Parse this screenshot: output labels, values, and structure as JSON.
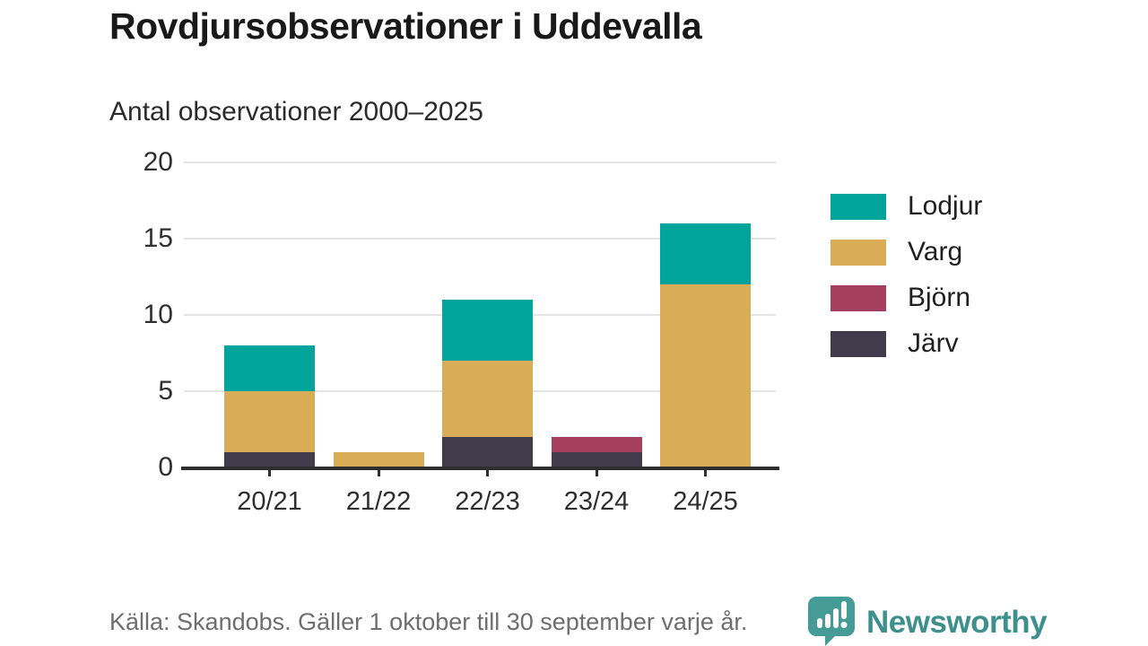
{
  "title": "Rovdjursobservationer i Uddevalla",
  "subtitle": "Antal observationer 2000–2025",
  "chart_data": {
    "type": "bar",
    "stacked": true,
    "title": "Rovdjursobservationer i Uddevalla",
    "subtitle": "Antal observationer 2000–2025",
    "categories": [
      "20/21",
      "21/22",
      "22/23",
      "23/24",
      "24/25"
    ],
    "series": [
      {
        "name": "Lodjur",
        "color": "#00a49a",
        "values": [
          3,
          0,
          4,
          0,
          4
        ]
      },
      {
        "name": "Varg",
        "color": "#d9ac58",
        "values": [
          4,
          1,
          5,
          0,
          12
        ]
      },
      {
        "name": "Björn",
        "color": "#a63f5f",
        "values": [
          0,
          0,
          0,
          1,
          0
        ]
      },
      {
        "name": "Järv",
        "color": "#413c4b",
        "values": [
          1,
          0,
          2,
          1,
          0
        ]
      }
    ],
    "stack_order_bottom_to_top": [
      "Järv",
      "Björn",
      "Varg",
      "Lodjur"
    ],
    "totals": [
      8,
      1,
      11,
      2,
      16
    ],
    "xlabel": "",
    "ylabel": "",
    "ylim": [
      0,
      20
    ],
    "yticks": [
      0,
      5,
      10,
      15,
      20
    ],
    "grid": true,
    "legend_position": "right",
    "legend": [
      "Lodjur",
      "Varg",
      "Björn",
      "Järv"
    ]
  },
  "footer": {
    "source": "Källa: Skandobs. Gäller 1 oktober till 30 september varje år."
  },
  "branding": {
    "name": "Newsworthy",
    "text_color": "#3e908c",
    "icon_color": "#459c97"
  }
}
